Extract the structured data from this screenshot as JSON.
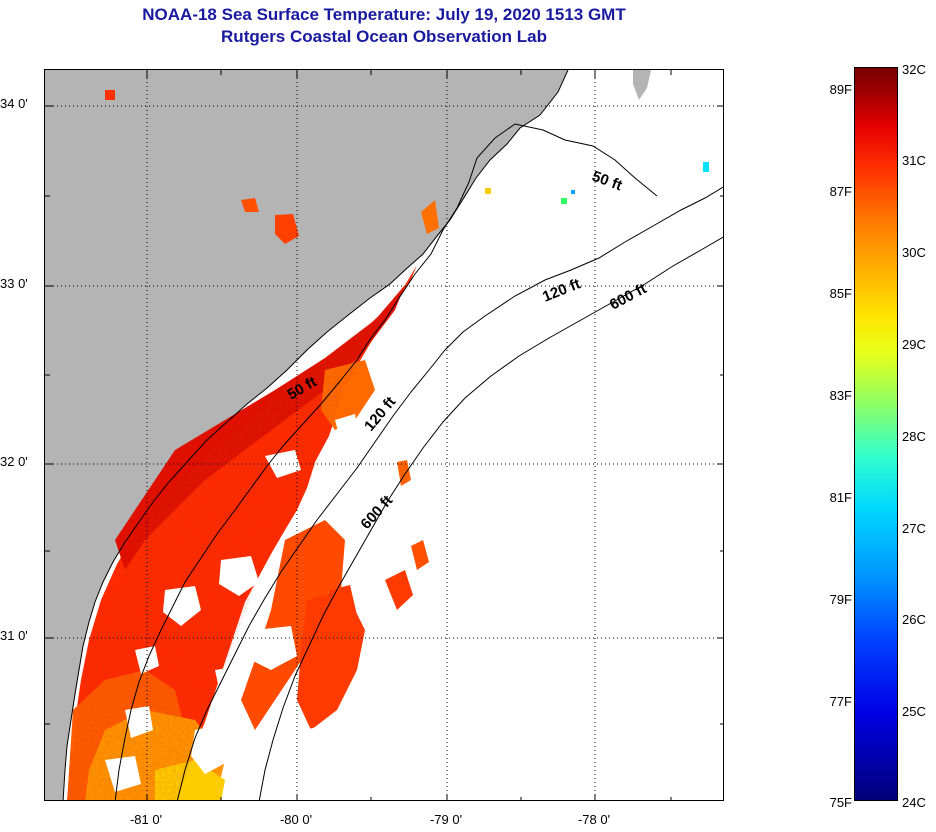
{
  "title": {
    "line1": "NOAA-18 Sea Surface Temperature:  July 19, 2020 1513 GMT",
    "line2": "Rutgers Coastal Ocean Observation Lab"
  },
  "map": {
    "lat_ticks": [
      "34 0'",
      "33 0'",
      "32 0'",
      "31 0'"
    ],
    "lon_ticks": [
      "-81 0'",
      "-80 0'",
      "-79 0'",
      "-78 0'"
    ],
    "isobath_labels": [
      "50 ft",
      "120 ft",
      "600 ft",
      "50 ft",
      "120 ft",
      "600 ft"
    ],
    "land_color": "#b4b4b4",
    "cloud_color": "#ffffff"
  },
  "colorbar": {
    "fahrenheit": [
      "89F",
      "87F",
      "85F",
      "83F",
      "81F",
      "79F",
      "77F",
      "75F"
    ],
    "celsius": [
      "32C",
      "31C",
      "30C",
      "29C",
      "28C",
      "27C",
      "26C",
      "25C",
      "24C"
    ],
    "min_c": 24,
    "max_c": 32
  }
}
